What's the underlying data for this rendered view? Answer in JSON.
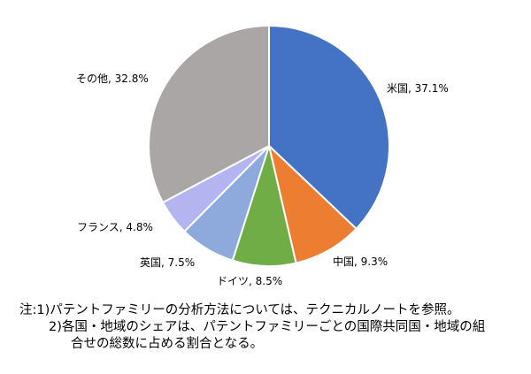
{
  "chart_data": {
    "type": "pie",
    "title": "",
    "start_angle_deg": 0,
    "direction": "clockwise",
    "slices": [
      {
        "label": "米国",
        "value": 37.1,
        "display": "米国, 37.1%",
        "color": "#4472C4"
      },
      {
        "label": "中国",
        "value": 9.3,
        "display": "中国, 9.3%",
        "color": "#ED7D31"
      },
      {
        "label": "ドイツ",
        "value": 8.5,
        "display": "ドイツ, 8.5%",
        "color": "#70AD47"
      },
      {
        "label": "英国",
        "value": 7.5,
        "display": "英国, 7.5%",
        "color": "#8EA9DB"
      },
      {
        "label": "フランス",
        "value": 4.8,
        "display": "フランス, 4.8%",
        "color": "#B4B4F0"
      },
      {
        "label": "その他",
        "value": 32.8,
        "display": "その他, 32.8%",
        "color": "#ABA6A6"
      }
    ]
  },
  "notes": {
    "prefix": "注:",
    "line1": "1)パテントファミリーの分析方法については、テクニカルノートを参照。",
    "line2": "2)各国・地域のシェアは、パテントファミリーごとの国際共同国・地域の組",
    "line3": "合せの総数に占める割合となる。"
  }
}
